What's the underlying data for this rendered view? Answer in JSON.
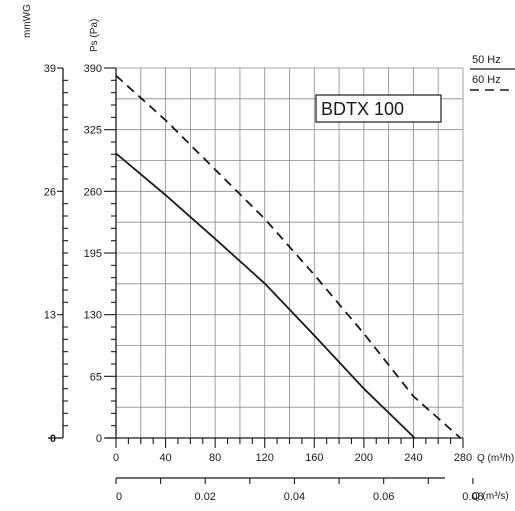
{
  "chart_data": {
    "type": "line",
    "title": "BDTX 100",
    "x": {
      "label": "Q (m³/h)",
      "ticks": [
        0,
        40,
        80,
        120,
        160,
        200,
        240,
        280
      ],
      "range": [
        0,
        280
      ]
    },
    "x2": {
      "label": "Q (m³/s)",
      "ticks": [
        "0",
        "0.02",
        "0.04",
        "0.06",
        "0.08"
      ],
      "values": [
        0,
        0.02,
        0.04,
        0.06,
        0.08
      ]
    },
    "y": {
      "label": "Ps (Pa)",
      "ticks": [
        0,
        65,
        130,
        195,
        260,
        325,
        390
      ],
      "range": [
        0,
        390
      ]
    },
    "y2": {
      "label": "mmWG",
      "ticks": [
        "0",
        "13",
        "26",
        "39"
      ],
      "values": [
        0,
        13,
        26,
        39
      ]
    },
    "grid": true,
    "legend_position": "top-right",
    "series": [
      {
        "name": "50 Hz",
        "style": "solid",
        "color": "#1a1a1a",
        "points": [
          [
            0,
            300
          ],
          [
            40,
            256
          ],
          [
            80,
            210
          ],
          [
            120,
            163
          ],
          [
            160,
            108
          ],
          [
            200,
            52
          ],
          [
            241,
            0
          ]
        ]
      },
      {
        "name": "60 Hz",
        "style": "dashed",
        "color": "#1a1a1a",
        "points": [
          [
            0,
            382
          ],
          [
            40,
            335
          ],
          [
            80,
            283
          ],
          [
            120,
            231
          ],
          [
            160,
            172
          ],
          [
            200,
            110
          ],
          [
            240,
            44
          ],
          [
            278,
            0
          ]
        ]
      }
    ]
  }
}
